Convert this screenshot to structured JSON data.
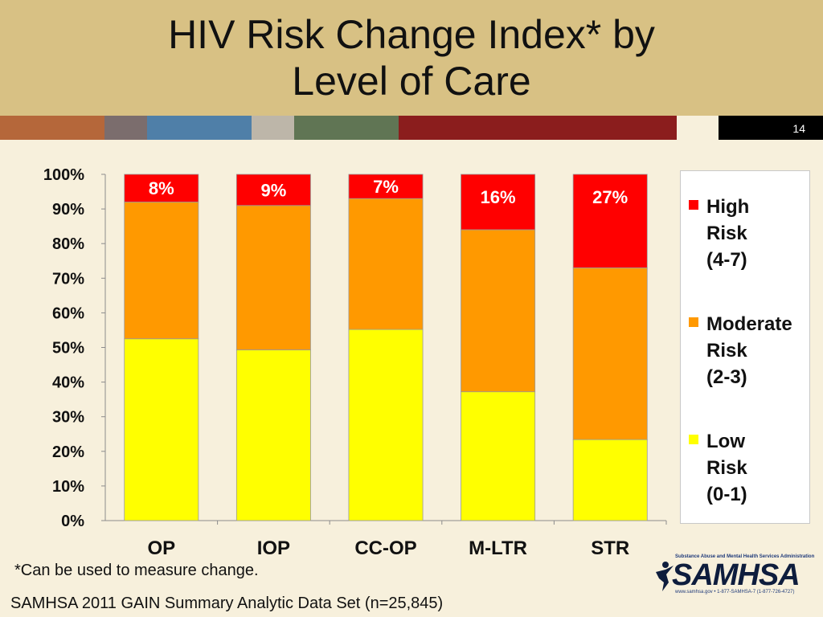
{
  "slide": {
    "title": "HIV Risk Change Index* by\nLevel of Care",
    "slide_number": "14",
    "footnote": "*Can be used to measure change.",
    "source": "SAMHSA 2011 GAIN Summary Analytic Data Set (n=25,845)",
    "header_color": "#d8c184",
    "background_color": "#f7f0dc",
    "stripe_colors": [
      "#b5673a",
      "#7b6d6d",
      "#4f7fa8",
      "#bdb6a9",
      "#607554",
      "#8b1d1d",
      "#f7f0dc",
      "#000000"
    ]
  },
  "logo": {
    "top_text": "Substance Abuse and Mental Health Services Administration",
    "wordmark": "SAMHSA",
    "bottom_text": "www.samhsa.gov • 1-877-SAMHSA-7 (1-877-726-4727)"
  },
  "chart_data": {
    "type": "bar",
    "stacked": true,
    "normalized": true,
    "title": "",
    "xlabel": "",
    "ylabel": "",
    "ylim": [
      0,
      100
    ],
    "y_ticks": [
      "0%",
      "10%",
      "20%",
      "30%",
      "40%",
      "50%",
      "60%",
      "70%",
      "80%",
      "90%",
      "100%"
    ],
    "categories": [
      "OP",
      "IOP",
      "CC-OP",
      "M-LTR",
      "STR"
    ],
    "series": [
      {
        "name": "Low\nRisk\n(0-1)",
        "color": "#ffff00",
        "values": [
          52.5,
          49.3,
          55.2,
          37.2,
          23.4
        ]
      },
      {
        "name": "Moderate\nRisk\n(2-3)",
        "color": "#ff9900",
        "values": [
          39.5,
          41.7,
          37.8,
          46.8,
          49.6
        ]
      },
      {
        "name": "High\nRisk\n(4-7)",
        "color": "#ff0000",
        "values": [
          8,
          9,
          7,
          16,
          27
        ]
      }
    ],
    "data_labels": [
      "8%",
      "9%",
      "7%",
      "16%",
      "27%"
    ],
    "legend": {
      "position": "right",
      "order": [
        "High\nRisk\n(4-7)",
        "Moderate\nRisk\n(2-3)",
        "Low\nRisk\n(0-1)"
      ]
    },
    "grid": false
  }
}
